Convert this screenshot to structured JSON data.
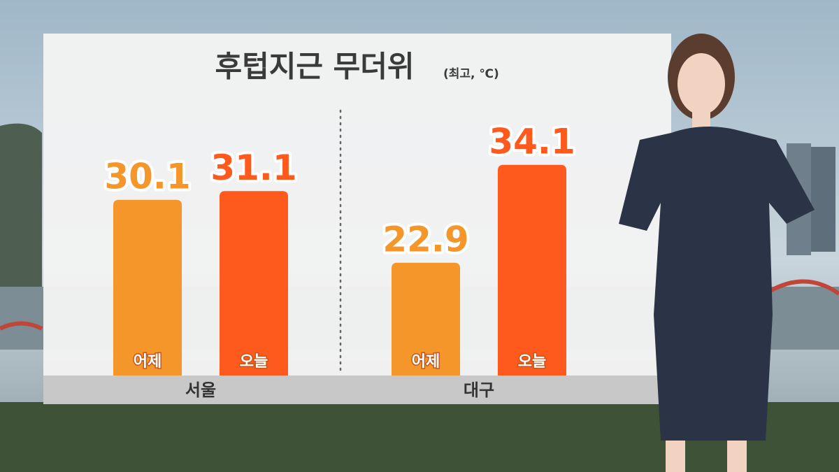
{
  "chart_data": {
    "type": "bar",
    "title": "후텁지근 무더위",
    "subtitle": "(최고, ℃)",
    "categories": [
      "서울",
      "대구"
    ],
    "series": [
      {
        "name": "어제",
        "color": "#f5962a",
        "values": [
          30.1,
          22.9
        ]
      },
      {
        "name": "오늘",
        "color": "#ff5a1e",
        "values": [
          31.1,
          34.1
        ]
      }
    ],
    "ylim": [
      10,
      36
    ]
  }
}
